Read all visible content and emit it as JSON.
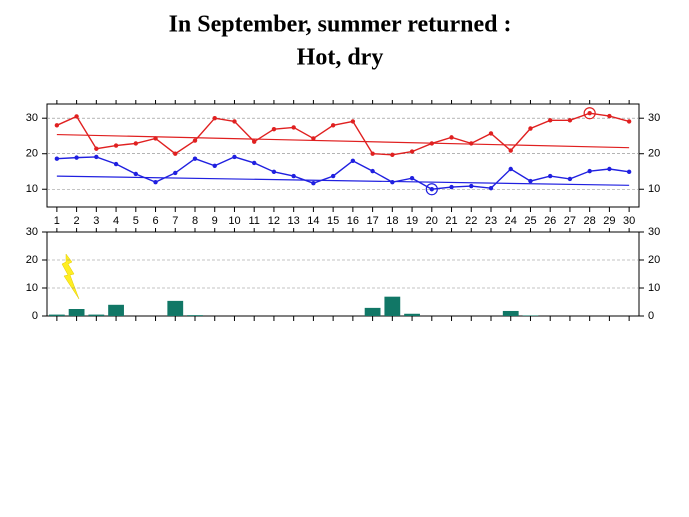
{
  "title": [
    "In September, summer returned :",
    "Hot, dry"
  ],
  "chart_data": [
    {
      "type": "line",
      "x": [
        1,
        2,
        3,
        4,
        5,
        6,
        7,
        8,
        9,
        10,
        11,
        12,
        13,
        14,
        15,
        16,
        17,
        18,
        19,
        20,
        21,
        22,
        23,
        24,
        25,
        26,
        27,
        28,
        29,
        30
      ],
      "xlim": [
        0.5,
        30.5
      ],
      "ylim": [
        5,
        34
      ],
      "yticks": [
        10,
        20,
        30
      ],
      "grid": true,
      "series": [
        {
          "color": "#e02020",
          "circled": 27,
          "values": [
            28,
            30.5,
            21.4,
            22.3,
            22.9,
            24.3,
            20,
            23.7,
            30,
            29.1,
            23.4,
            26.9,
            27.4,
            24.3,
            28,
            29.1,
            20,
            19.7,
            20.6,
            22.9,
            24.6,
            22.9,
            25.7,
            20.9,
            27.1,
            29.4,
            29.4,
            31.4,
            30.6,
            29.1
          ]
        },
        {
          "color": "#2020e0",
          "circled": 19,
          "values": [
            18.6,
            18.9,
            19.1,
            17.1,
            14.3,
            12,
            14.6,
            18.6,
            16.6,
            19.1,
            17.4,
            14.9,
            13.7,
            11.7,
            13.7,
            18,
            15.1,
            12,
            13.1,
            10,
            10.6,
            10.9,
            10.3,
            15.7,
            12.3,
            13.7,
            12.9,
            15.1,
            15.7,
            14.9
          ]
        }
      ],
      "trends": [
        {
          "color": "#e02020",
          "x": [
            1,
            30
          ],
          "values": [
            25.4,
            21.7
          ]
        },
        {
          "color": "#2020e0",
          "x": [
            1,
            30
          ],
          "values": [
            13.7,
            11.1
          ]
        }
      ]
    },
    {
      "type": "bar",
      "x": [
        1,
        2,
        3,
        4,
        5,
        6,
        7,
        8,
        9,
        10,
        11,
        12,
        13,
        14,
        15,
        16,
        17,
        18,
        19,
        20,
        21,
        22,
        23,
        24,
        25,
        26,
        27,
        28,
        29,
        30
      ],
      "xlim": [
        0.5,
        30.5
      ],
      "ylim": [
        0,
        30
      ],
      "yticks": [
        0,
        10,
        20,
        30
      ],
      "grid": true,
      "color": "#117766",
      "values": [
        0.5,
        2.5,
        0.5,
        4,
        0,
        0,
        5.4,
        0.3,
        0,
        0,
        0,
        0,
        0,
        0,
        0,
        0,
        2.9,
        6.9,
        0.8,
        0,
        0,
        0,
        0,
        1.8,
        0.2,
        0,
        0,
        0,
        0,
        0
      ]
    }
  ]
}
